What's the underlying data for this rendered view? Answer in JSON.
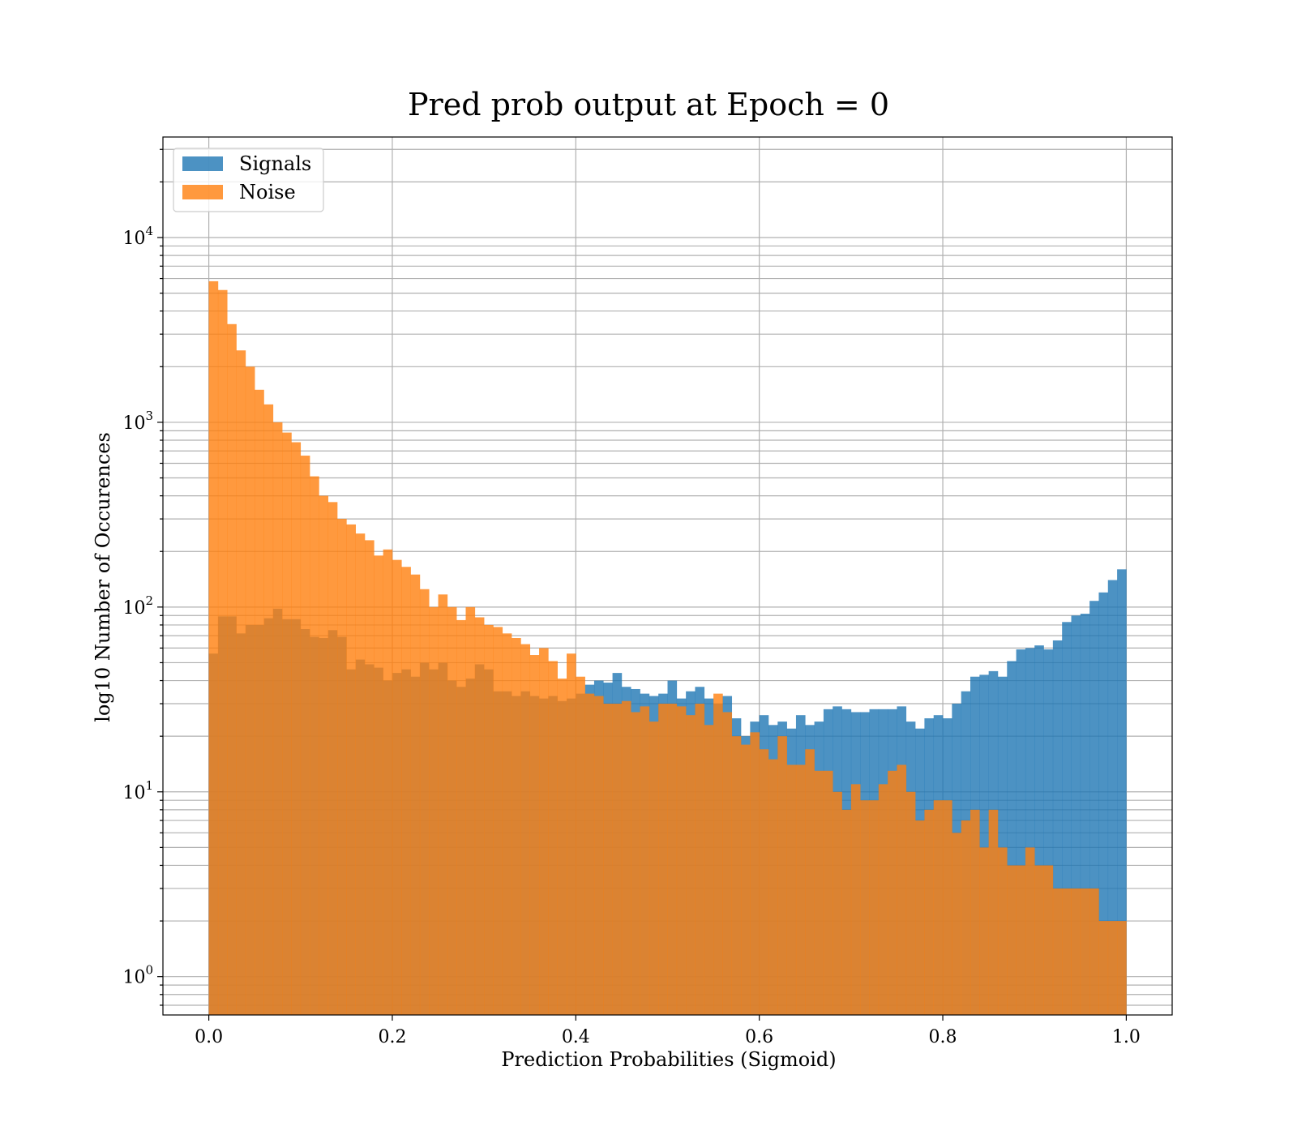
{
  "chart_data": {
    "type": "histogram",
    "title": "Pred prob output at Epoch = 0",
    "xlabel": "Prediction Probabilities (Sigmoid)",
    "ylabel": "log10 Number of Occurences",
    "xlim": [
      -0.05,
      1.05
    ],
    "ylim": [
      0.62,
      35000
    ],
    "yscale": "log",
    "grid": true,
    "legend_position": "upper-left",
    "bins": {
      "start": 0.0,
      "end": 1.0,
      "count": 100
    },
    "x_ticks": [
      "0.0",
      "0.2",
      "0.4",
      "0.6",
      "0.8",
      "1.0"
    ],
    "x_tick_values": [
      0.0,
      0.2,
      0.4,
      0.6,
      0.8,
      1.0
    ],
    "y_ticks": [
      {
        "base": "10",
        "exp": "0",
        "value": 1
      },
      {
        "base": "10",
        "exp": "1",
        "value": 10
      },
      {
        "base": "10",
        "exp": "2",
        "value": 100
      },
      {
        "base": "10",
        "exp": "3",
        "value": 1000
      },
      {
        "base": "10",
        "exp": "4",
        "value": 10000
      }
    ],
    "series": [
      {
        "name": "Signals",
        "color": "#1f77b4",
        "opacity": 0.8,
        "values": [
          56,
          89,
          89,
          72,
          80,
          80,
          87,
          98,
          86,
          86,
          76,
          69,
          68,
          75,
          69,
          46,
          52,
          49,
          47,
          40,
          44,
          46,
          42,
          50,
          46,
          50,
          40,
          37,
          41,
          49,
          46,
          35,
          35,
          33,
          35,
          33,
          32,
          33,
          31,
          32,
          34,
          38,
          40,
          39,
          44,
          37,
          36,
          34,
          33,
          34,
          40,
          32,
          35,
          37,
          32,
          30,
          33,
          25,
          20,
          24,
          26,
          23,
          24,
          22,
          26,
          23,
          24,
          28,
          29,
          28,
          27,
          27,
          28,
          28,
          28,
          29,
          24,
          22,
          25,
          26,
          25,
          30,
          35,
          42,
          43,
          45,
          42,
          51,
          59,
          60,
          62,
          59,
          66,
          83,
          90,
          92,
          108,
          120,
          140,
          160
        ]
      },
      {
        "name": "Noise",
        "color": "#ff7f0e",
        "opacity": 0.8,
        "values": [
          5800,
          5200,
          3400,
          2450,
          2000,
          1500,
          1250,
          1000,
          880,
          780,
          660,
          510,
          400,
          370,
          300,
          280,
          250,
          230,
          190,
          205,
          180,
          165,
          150,
          125,
          100,
          117,
          100,
          85,
          100,
          88,
          80,
          78,
          72,
          68,
          63,
          55,
          60,
          51,
          41,
          56,
          42,
          34,
          33,
          30,
          30,
          31,
          27,
          29,
          24,
          30,
          30,
          29,
          26,
          30,
          23,
          34,
          27,
          20,
          18,
          21,
          17,
          15,
          20,
          14,
          14,
          17,
          13,
          13,
          10,
          8,
          11,
          9,
          9,
          11,
          13,
          14,
          10,
          7,
          8,
          9,
          9,
          6,
          7,
          8,
          5,
          8,
          5,
          4,
          4,
          5,
          4,
          4,
          3,
          3,
          3,
          3,
          3,
          2,
          2,
          2
        ]
      }
    ]
  }
}
